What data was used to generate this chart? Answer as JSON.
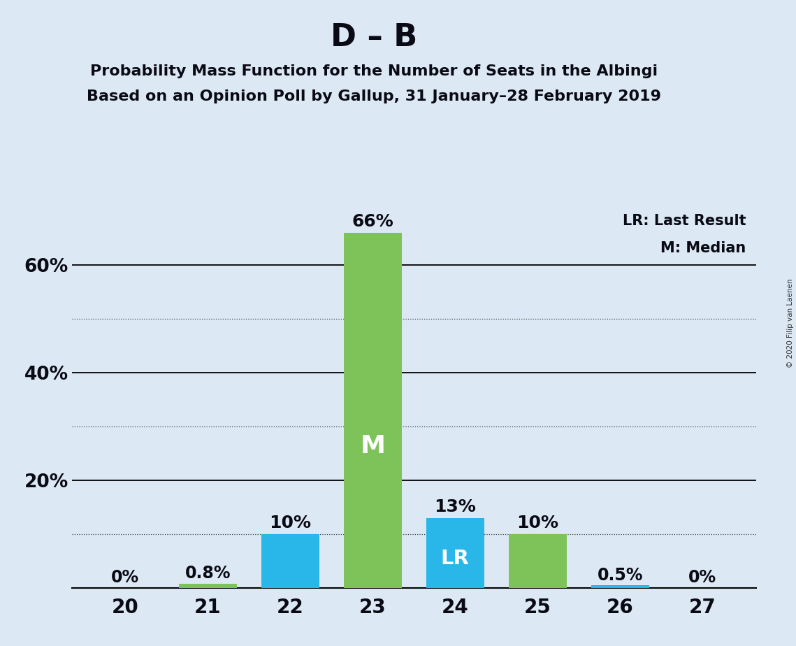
{
  "title_main": "D – B",
  "title_sub1": "Probability Mass Function for the Number of Seats in the Albingi",
  "title_sub2": "Based on an Opinion Poll by Gallup, 31 January–28 February 2019",
  "copyright": "© 2020 Filip van Laenen",
  "seats": [
    20,
    21,
    22,
    23,
    24,
    25,
    26,
    27
  ],
  "values": [
    0.0,
    0.8,
    10.0,
    66.0,
    13.0,
    10.0,
    0.5,
    0.0
  ],
  "labels": [
    "0%",
    "0.8%",
    "10%",
    "66%",
    "13%",
    "10%",
    "0.5%",
    "0%"
  ],
  "bar_colors": [
    "#7dc35a",
    "#7dc35a",
    "#29b6e8",
    "#7dc35a",
    "#29b6e8",
    "#7dc35a",
    "#29b6e8",
    "#7dc35a"
  ],
  "median_bar_idx": 3,
  "lr_bar_idx": 4,
  "median_label": "M",
  "lr_label": "LR",
  "legend_lr": "LR: Last Result",
  "legend_m": "M: Median",
  "ylim_max": 72,
  "ysolid_lines": [
    20,
    40,
    60
  ],
  "ydotted_lines": [
    10,
    30,
    50
  ],
  "background_color": "#dce9f5",
  "bar_width": 0.7,
  "median_label_color": "#ffffff",
  "lr_label_color": "#ffffff",
  "text_color": "#0a0a14",
  "label_fontsize": 17,
  "tick_fontsize": 19,
  "title_fontsize": 32,
  "subtitle_fontsize": 16
}
